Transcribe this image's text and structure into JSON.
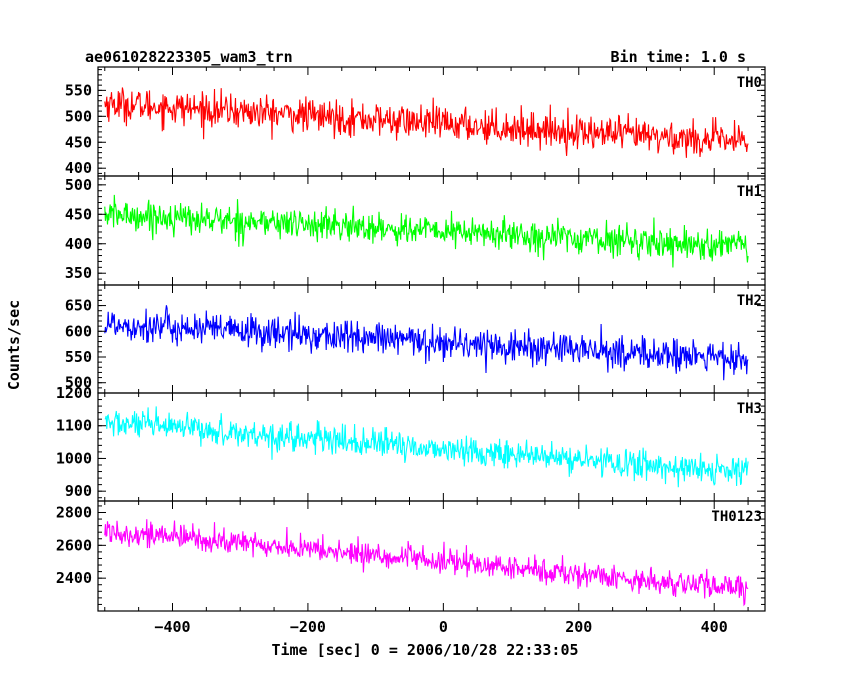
{
  "header": {
    "title": "ae061028223305_wam3_trn",
    "bin_time": "Bin time: 1.0 s"
  },
  "chart_data": {
    "type": "line",
    "xlabel": "Time [sec] 0 = 2006/10/28 22:33:05",
    "ylabel": "Counts/sec",
    "xlim": [
      -510,
      475
    ],
    "x_range": [
      -500,
      450
    ],
    "x_step": 1,
    "xticks": [
      -400,
      -200,
      0,
      200,
      400
    ],
    "x_minor_step": 50,
    "grid": false,
    "panels": [
      {
        "name": "TH0",
        "color": "#ff0000",
        "ylim": [
          385,
          595
        ],
        "yticks": [
          400,
          450,
          500,
          550
        ],
        "trend_start": 525,
        "trend_end": 450,
        "noise": 30
      },
      {
        "name": "TH1",
        "color": "#00ff00",
        "ylim": [
          330,
          515
        ],
        "yticks": [
          350,
          400,
          450,
          500
        ],
        "trend_start": 450,
        "trend_end": 395,
        "noise": 24
      },
      {
        "name": "TH2",
        "color": "#0000ff",
        "ylim": [
          480,
          690
        ],
        "yticks": [
          500,
          550,
          600,
          650
        ],
        "trend_start": 615,
        "trend_end": 545,
        "noise": 30
      },
      {
        "name": "TH3",
        "color": "#00ffff",
        "ylim": [
          870,
          1200
        ],
        "yticks": [
          900,
          1000,
          1100,
          1200
        ],
        "trend_start": 1110,
        "trend_end": 955,
        "noise": 40
      },
      {
        "name": "TH0123",
        "color": "#ff00ff",
        "ylim": [
          2200,
          2870
        ],
        "yticks": [
          2400,
          2600,
          2800
        ],
        "trend_start": 2690,
        "trend_end": 2330,
        "noise": 70
      }
    ]
  }
}
